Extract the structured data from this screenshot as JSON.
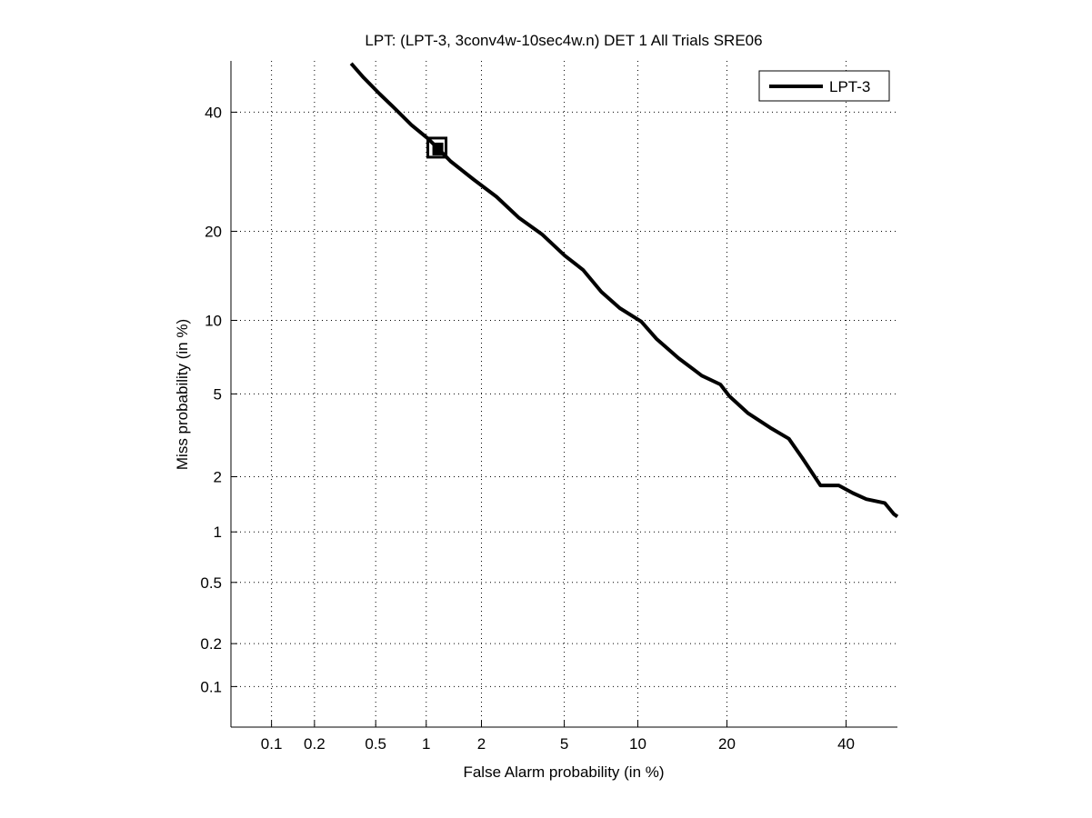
{
  "chart_data": {
    "type": "line",
    "title": "LPT: (LPT-3, 3conv4w-10sec4w.n) DET 1 All Trials SRE06",
    "xlabel": "False Alarm probability (in %)",
    "ylabel": "Miss probability (in %)",
    "scale": "probit",
    "xlim": [
      0.05,
      50
    ],
    "ylim": [
      0.05,
      50
    ],
    "grid": true,
    "x_ticks": [
      0.1,
      0.2,
      0.5,
      1,
      2,
      5,
      10,
      20,
      40
    ],
    "x_tick_labels": [
      "0.1",
      "0.2",
      "0.5",
      "1",
      "2",
      "5",
      "10",
      "20",
      "40"
    ],
    "y_ticks": [
      0.1,
      0.2,
      0.5,
      1,
      2,
      5,
      10,
      20,
      40
    ],
    "y_tick_labels": [
      "0.1",
      "0.2",
      "0.5",
      "1",
      "2",
      "5",
      "10",
      "20",
      "40"
    ],
    "legend": {
      "position": "top-right",
      "entries": [
        "LPT-3"
      ]
    },
    "series": [
      {
        "name": "LPT-3",
        "color": "#000000",
        "x": [
          0.35,
          0.42,
          0.53,
          0.64,
          0.82,
          1.01,
          1.14,
          1.37,
          1.82,
          2.39,
          3.09,
          3.96,
          5.03,
          6.03,
          7.19,
          8.52,
          10.3,
          11.7,
          14.0,
          16.7,
          19.1,
          20.3,
          23.0,
          26.5,
          29.6,
          31.9,
          35.2,
          38.6,
          41.3,
          43.9,
          47.5,
          49.3,
          50.5
        ],
        "y": [
          49.5,
          46.7,
          43.5,
          41.0,
          37.6,
          35.2,
          33.6,
          31.0,
          27.9,
          25.1,
          21.9,
          19.6,
          16.8,
          15.1,
          12.7,
          11.1,
          9.9,
          8.5,
          7.1,
          6.0,
          5.5,
          4.9,
          4.1,
          3.5,
          3.1,
          2.5,
          1.8,
          1.8,
          1.64,
          1.52,
          1.45,
          1.26,
          1.22
        ]
      }
    ],
    "markers": [
      {
        "series": "LPT-3",
        "shape": "square",
        "x": 1.15,
        "y": 33.5
      }
    ]
  }
}
